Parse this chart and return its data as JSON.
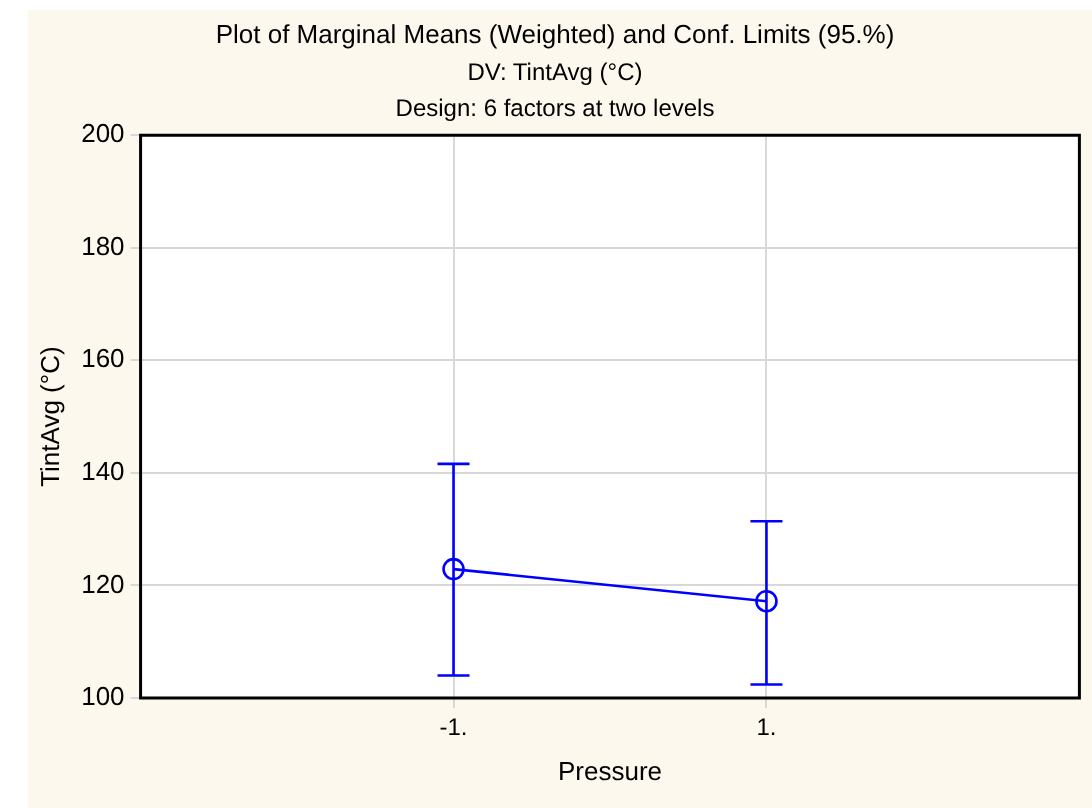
{
  "chart_data": {
    "type": "line",
    "title": "Plot of Marginal Means (Weighted) and Conf. Limits (95.%)",
    "subtitle": "DV: TintAvg (°C)\nDesign: 6 factors at two levels",
    "xlabel": "Pressure",
    "ylabel": "TintAvg (°C)",
    "x": [
      -1,
      1
    ],
    "series": [
      {
        "color": "#0000ff",
        "values": [
          122.9,
          117.2
        ],
        "errors": [
          [
            104.0,
            141.6
          ],
          [
            102.4,
            131.4
          ]
        ]
      }
    ],
    "xlim": [
      -3,
      3
    ],
    "xticks": [
      {
        "value": -1,
        "label": "-1."
      },
      {
        "value": 1,
        "label": "1."
      }
    ],
    "ylim": [
      100,
      200
    ],
    "yticks": [
      100,
      120,
      140,
      160,
      180,
      200
    ],
    "grid": true,
    "legend": false,
    "marker": "circle",
    "line_style": "solid"
  }
}
